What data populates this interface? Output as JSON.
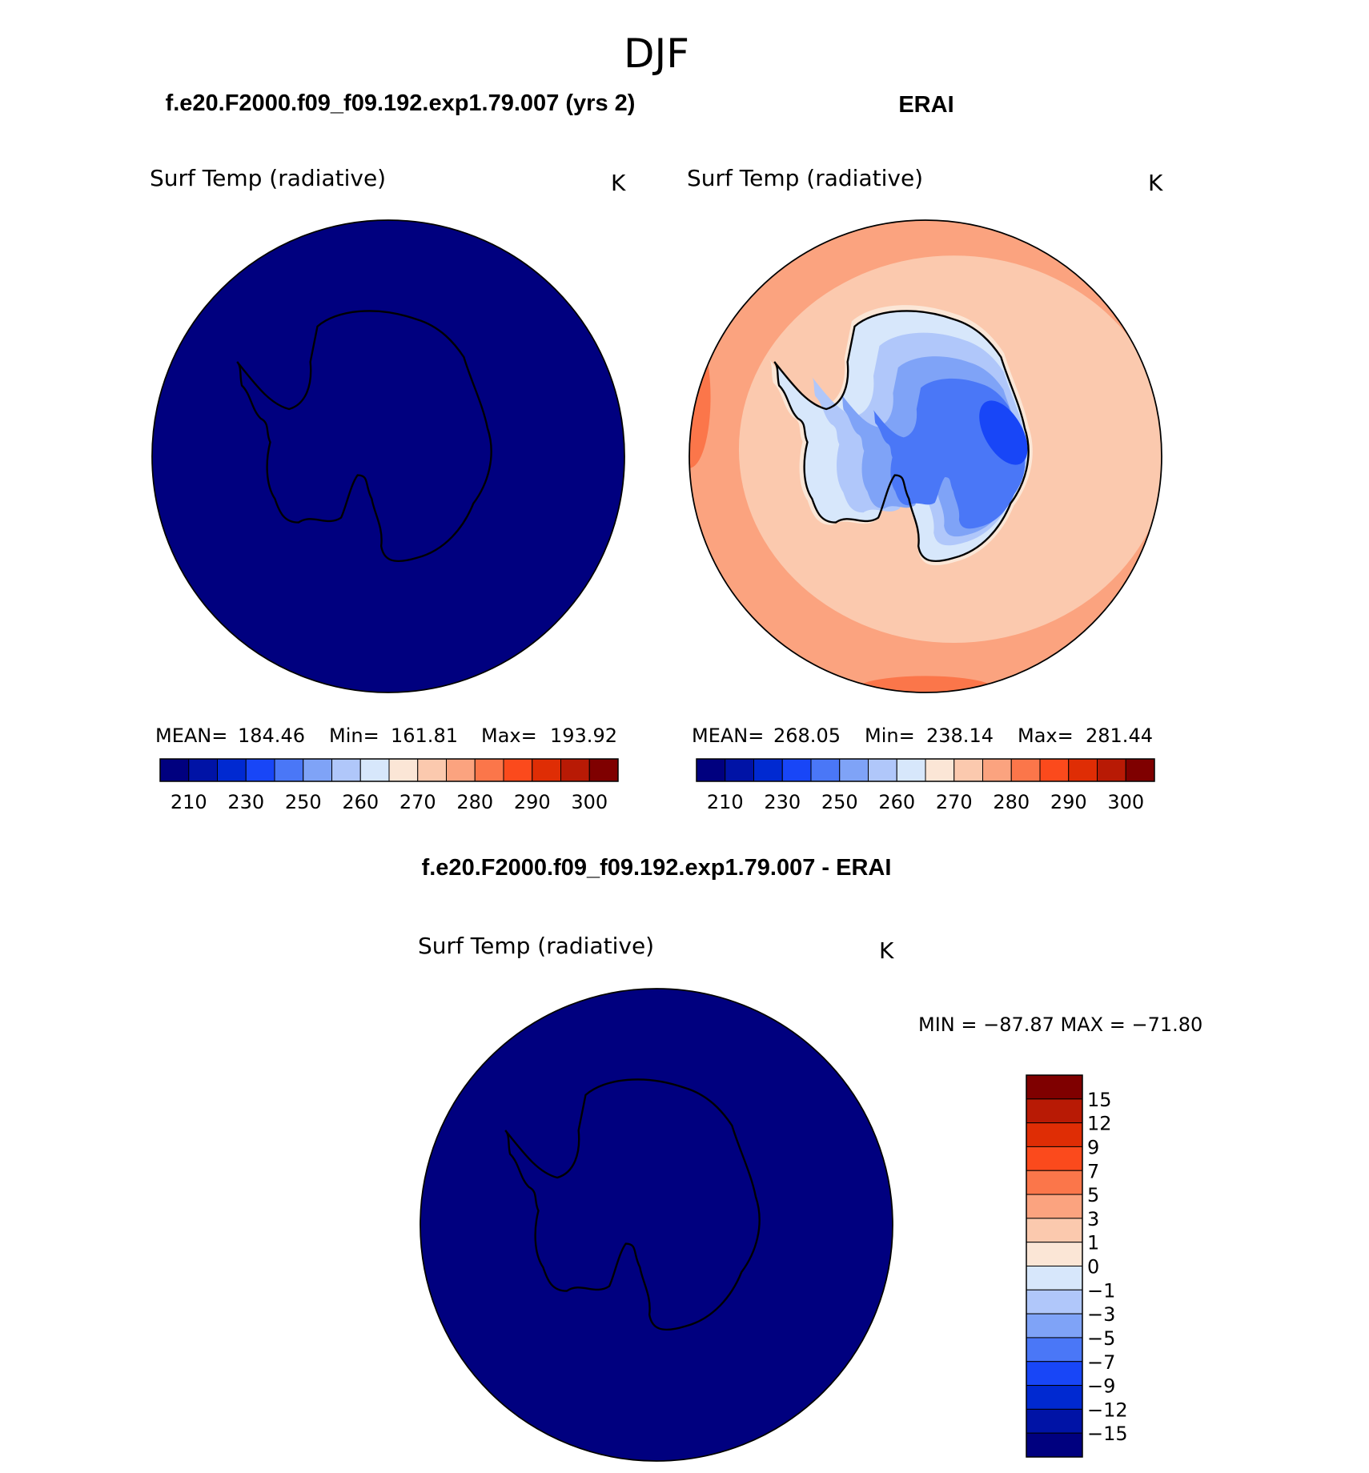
{
  "figure": {
    "title": "DJF"
  },
  "colors": {
    "abs_scale": [
      "#00007f",
      "#0013a6",
      "#0029d1",
      "#1846f7",
      "#4a77f7",
      "#7fa3f7",
      "#b0c7fa",
      "#d7e7fb",
      "#fbe6d6",
      "#fbc9ae",
      "#fba37f",
      "#fb764a",
      "#fb4a1c",
      "#df2d05",
      "#b81a05",
      "#7f0000"
    ],
    "diff_scale": [
      "#00007f",
      "#0013a6",
      "#0029d1",
      "#1846f7",
      "#4a77f7",
      "#7fa3f7",
      "#b0c7fa",
      "#d7e7fb",
      "#fbe6d6",
      "#fbc9ae",
      "#fba37f",
      "#fb764a",
      "#fb4a1c",
      "#df2d05",
      "#b81a05",
      "#7f0000"
    ]
  },
  "chart_data": [
    {
      "type": "heatmap",
      "projection": "south polar stereographic",
      "heading": "f.e20.F2000.f09_f09.192.exp1.79.007 (yrs 2)",
      "variable": "Surf Temp (radiative)",
      "units": "K",
      "stats": {
        "mean_label": "MEAN=",
        "mean": "184.46",
        "min_label": "Min=",
        "min": "161.81",
        "max_label": "Max=",
        "max": "193.92"
      },
      "colorbar_ticks": [
        "210",
        "230",
        "250",
        "260",
        "270",
        "280",
        "290",
        "300"
      ],
      "field": "uniform below lowest contour (all < 210 K)"
    },
    {
      "type": "heatmap",
      "projection": "south polar stereographic",
      "heading": "ERAI",
      "variable": "Surf Temp (radiative)",
      "units": "K",
      "stats": {
        "mean_label": "MEAN=",
        "mean": "268.05",
        "min_label": "Min=",
        "min": "238.14",
        "max_label": "Max=",
        "max": "281.44"
      },
      "colorbar_ticks": [
        "210",
        "230",
        "250",
        "260",
        "270",
        "280",
        "290",
        "300"
      ],
      "field": "Antarctic interior 230-260 K, coast 260-270 K, Southern Ocean 270-285 K"
    },
    {
      "type": "heatmap",
      "projection": "south polar stereographic",
      "heading": "f.e20.F2000.f09_f09.192.exp1.79.007 - ERAI",
      "variable": "Surf Temp (radiative)",
      "units": "K",
      "stats": {
        "text": "MIN = −87.87 MAX = −71.80"
      },
      "colorbar_ticks": [
        "15",
        "12",
        "9",
        "7",
        "5",
        "3",
        "1",
        "0",
        "−1",
        "−3",
        "−5",
        "−7",
        "−9",
        "−12",
        "−15"
      ],
      "field": "uniform below lowest contour (all < -15 K)"
    }
  ]
}
